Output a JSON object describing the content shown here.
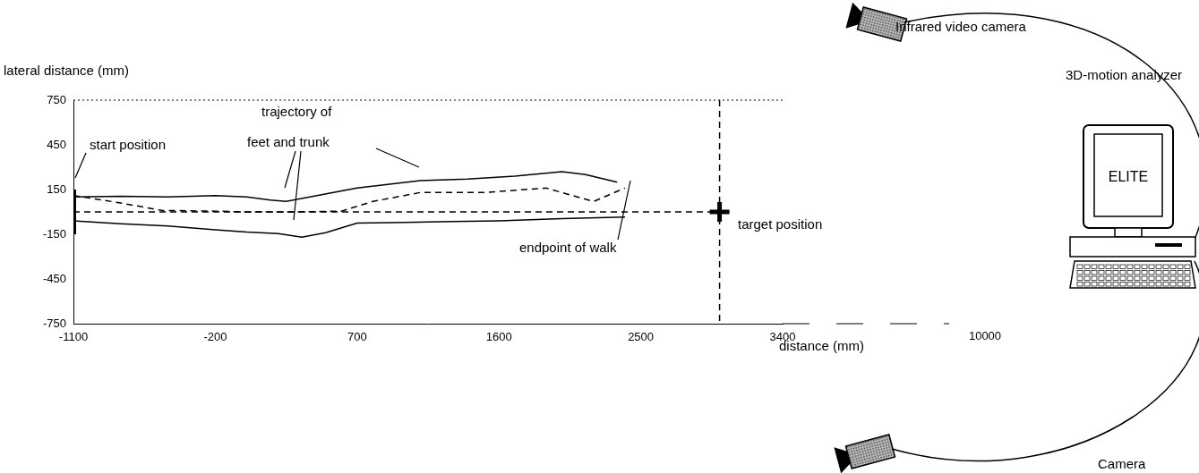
{
  "chart_data": {
    "type": "line",
    "x_label": "distance (mm)",
    "y_label": "lateral distance (mm)",
    "xlim": [
      -1100,
      3400
    ],
    "xticks": [
      -1100,
      -200,
      700,
      1600,
      2500,
      3400
    ],
    "x_break_tick": 10000,
    "ylim": [
      -750,
      750
    ],
    "yticks": [
      -750,
      -450,
      -150,
      150,
      450,
      750
    ],
    "grid": false,
    "series": [
      {
        "color": "#000000",
        "line_style": "solid",
        "x": [
          -1100,
          -800,
          -500,
          -200,
          0,
          150,
          250,
          400,
          700,
          1100,
          1400,
          1700,
          2000,
          2150,
          2350
        ],
        "values": [
          100,
          105,
          100,
          110,
          100,
          80,
          70,
          100,
          160,
          210,
          220,
          240,
          270,
          250,
          200
        ]
      },
      {
        "color": "#000000",
        "line_style": "dashed",
        "x": [
          -1100,
          -800,
          -540,
          -200,
          0,
          300,
          600,
          800,
          1100,
          1500,
          1900,
          2200,
          2400
        ],
        "values": [
          110,
          60,
          10,
          5,
          0,
          0,
          5,
          70,
          130,
          130,
          160,
          70,
          160
        ]
      },
      {
        "color": "#000000",
        "line_style": "solid",
        "x": [
          -1100,
          -800,
          -500,
          -200,
          0,
          200,
          350,
          500,
          700,
          1000,
          1300,
          1600,
          2000,
          2400
        ],
        "values": [
          -60,
          -80,
          -95,
          -120,
          -135,
          -145,
          -170,
          -140,
          -75,
          -70,
          -65,
          -60,
          -45,
          -35
        ]
      },
      {
        "color": "#000000",
        "line_style": "dashed",
        "x": [
          -1100,
          3000
        ],
        "values": [
          0,
          0
        ]
      },
      {
        "color": "#000000",
        "line_style": "dashed",
        "x": [
          3000,
          3000
        ],
        "values": [
          750,
          -750
        ]
      },
      {
        "color": "#000000",
        "line_style": "thick",
        "x": [
          -1100,
          -1100
        ],
        "values": [
          150,
          -150
        ]
      },
      {
        "color": "#000000",
        "line_style": "none",
        "marker": "cross",
        "x": [
          3000
        ],
        "values": [
          0
        ]
      }
    ],
    "annotations": [
      "start position",
      "trajectory of",
      "feet and trunk",
      "endpoint of walk",
      "target position"
    ]
  },
  "diagram": {
    "camera_top": "Infrared video camera",
    "analyzer": "3D-motion analyzer",
    "screen": "ELITE",
    "camera_bottom": "Camera"
  }
}
